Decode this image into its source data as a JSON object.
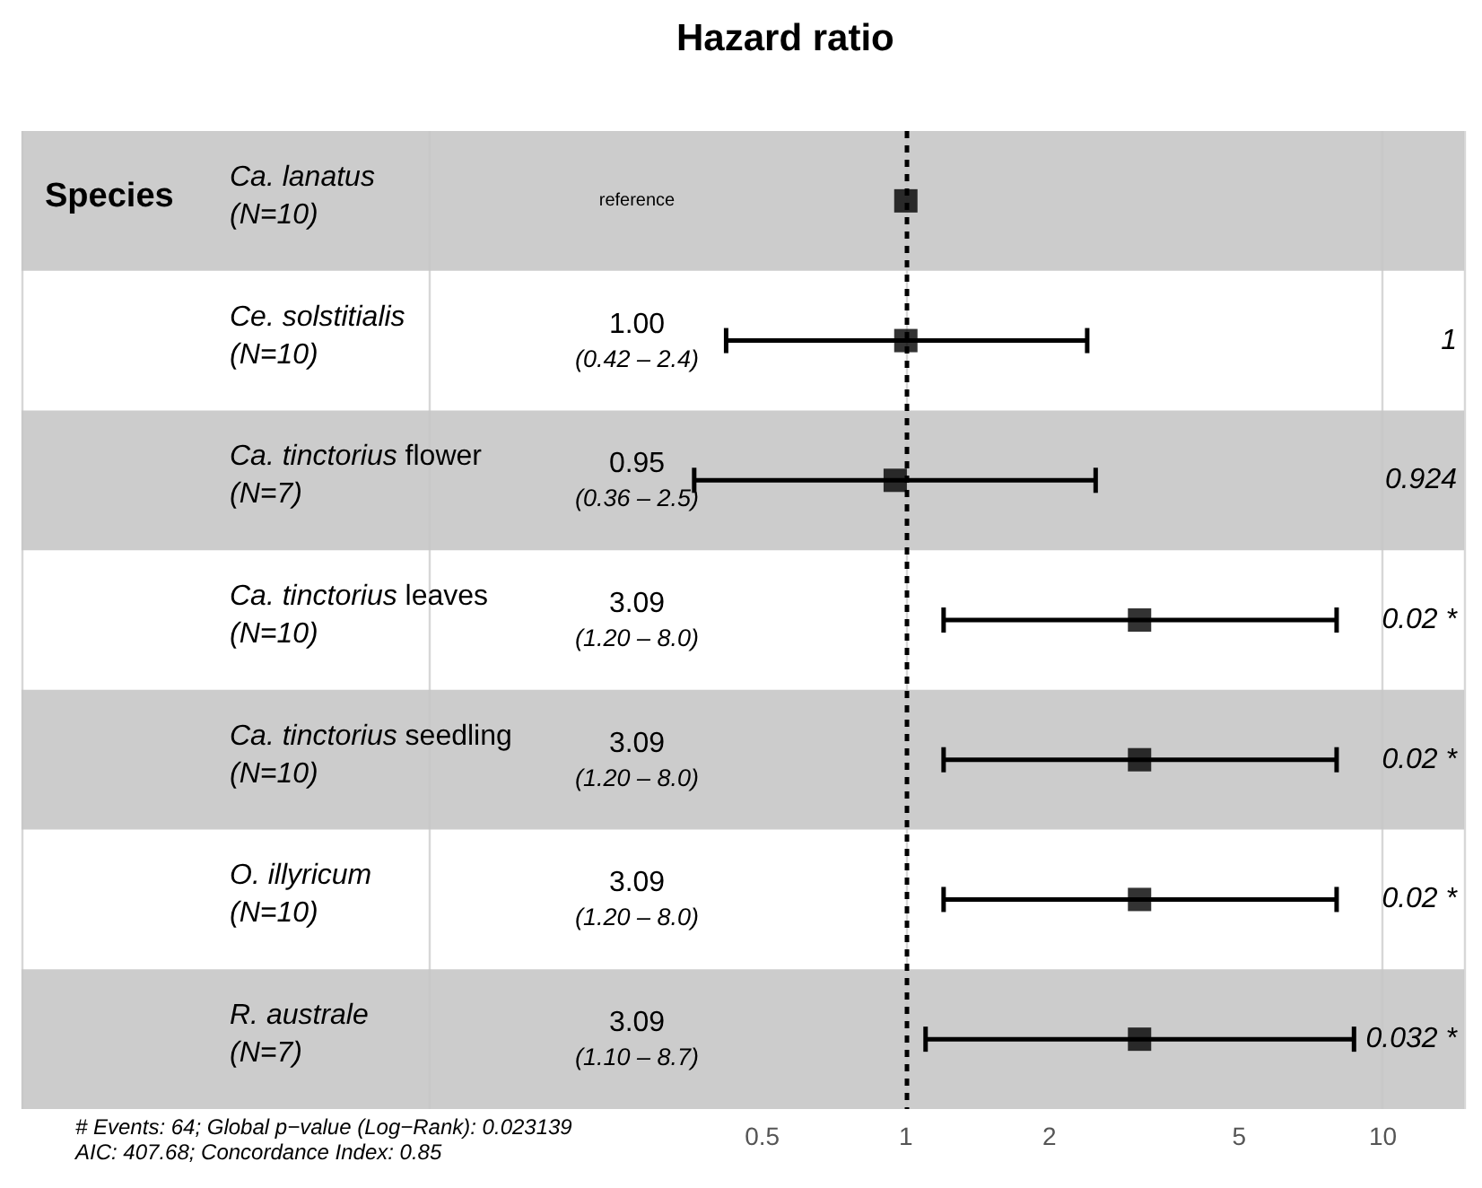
{
  "chart_data": {
    "type": "scatter",
    "orientation": "horizontal",
    "title": "Hazard ratio",
    "ylabel": "Species",
    "categories": [
      "Ca. lanatus\n(N=10)",
      "Ce. solstitialis\n(N=10)",
      "Ca. tinctorius flower\n(N=7)",
      "Ca. tinctorius leaves\n(N=10)",
      "Ca. tinctorius seedling\n(N=10)",
      "O. illyricum\n(N=10)",
      "R. australe\n(N=7)"
    ],
    "values": [
      1,
      1,
      0.95,
      3.09,
      3.09,
      3.09,
      3.09
    ],
    "errors": [
      null,
      [
        0.42,
        2.4
      ],
      [
        0.36,
        2.5
      ],
      [
        1.2,
        8.0
      ],
      [
        1.2,
        8.0
      ],
      [
        1.2,
        8.0
      ],
      [
        1.1,
        8.7
      ]
    ],
    "color": "#000000",
    "marker": "square",
    "log": "x",
    "xlim": [
      0.014,
      14.8
    ],
    "xticks": [
      0.5,
      1,
      2,
      5,
      10
    ],
    "grid": "x",
    "ref_lines": [
      {
        "axis": "x",
        "value": 1,
        "color": "#000000",
        "line_style": "dashed"
      }
    ],
    "bands": [
      {
        "axis": "y",
        "from": "Ca. lanatus\n(N=10)",
        "to": "Ca. lanatus\n(N=10)",
        "color": "#cccccc"
      },
      {
        "axis": "y",
        "from": "Ca. tinctorius flower\n(N=7)",
        "to": "Ca. tinctorius flower\n(N=7)",
        "color": "#cccccc"
      },
      {
        "axis": "y",
        "from": "Ca. tinctorius seedling\n(N=10)",
        "to": "Ca. tinctorius seedling\n(N=10)",
        "color": "#cccccc"
      },
      {
        "axis": "y",
        "from": "R. australe\n(N=7)",
        "to": "R. australe\n(N=7)",
        "color": "#cccccc"
      }
    ],
    "annotations": [
      "reference",
      "1.00\n(0.42 – 2.4)",
      "0.95\n(0.36 – 2.5)",
      "3.09\n(1.20 – 8.0)",
      "3.09\n(1.20 – 8.0)",
      "3.09\n(1.20 – 8.0)",
      "3.09\n(1.10 – 8.7)",
      "1",
      "0.924",
      "0.02 *",
      "0.02 *",
      "0.02 *",
      "0.032 *",
      "# Events: 64; Global p−value (Log−Rank): 0.023139",
      "AIC: 407.68; Concordance Index: 0.85"
    ]
  }
}
